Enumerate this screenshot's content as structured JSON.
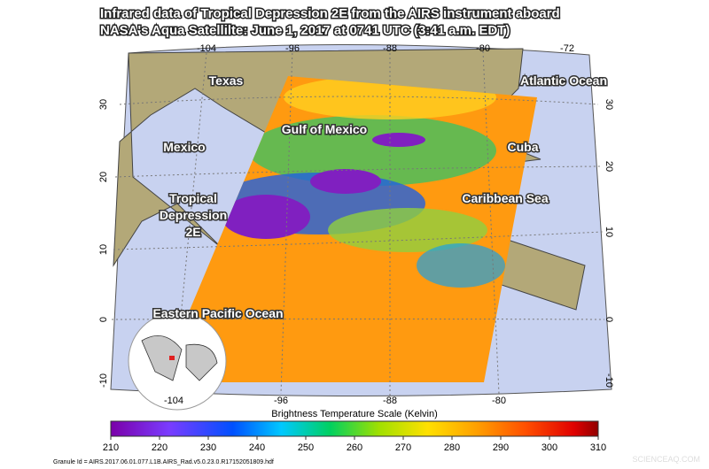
{
  "header": {
    "title_lines": [
      "Infrared data of Tropical Depression 2E from the AIRS instrument aboard",
      "NASA's Aqua Satellilte: June 1, 2017 at 0741 UTC (3:41 a.m. EDT)"
    ]
  },
  "map": {
    "labels": [
      "Texas",
      "Atlantic Ocean",
      "Gulf of Mexico",
      "Mexico",
      "Cuba",
      "Caribbean Sea",
      "Tropical",
      "Depression",
      "2E",
      "Eastern Pacific Ocean"
    ],
    "lon_top": [
      -104,
      -96,
      -88,
      -80,
      -72
    ],
    "lon_bottom": [
      -104,
      -96,
      -88,
      -80
    ],
    "lat_left": [
      30,
      20,
      10,
      0,
      -10
    ],
    "lat_right": [
      30,
      20,
      10,
      0,
      -10
    ]
  },
  "colorbar": {
    "title": "Brightness Temperature Scale (Kelvin)",
    "ticks": [
      210,
      220,
      230,
      240,
      250,
      260,
      270,
      280,
      290,
      300,
      310
    ]
  },
  "footer": {
    "granule": "Granule Id = AIRS.2017.06.01.077.L1B.AIRS_Rad.v5.0.23.0.R17152051809.hdf",
    "watermark": "SCIENCEAQ.COM"
  }
}
